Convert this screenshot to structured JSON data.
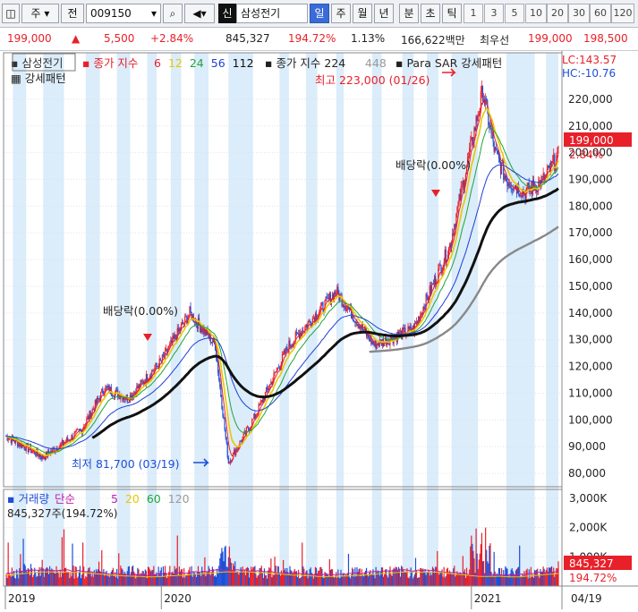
{
  "toolbar": {
    "market_btn": "주",
    "prev_btn": "전",
    "code": "009150",
    "badge": "신",
    "name": "삼성전기",
    "periods": [
      "일",
      "주",
      "월",
      "년",
      "분",
      "초",
      "틱"
    ],
    "active_period": "일",
    "intervals": [
      "1",
      "3",
      "5",
      "10",
      "20",
      "30",
      "60",
      "120"
    ]
  },
  "quote": {
    "price": "199,000",
    "change_arrow": "▲",
    "change": "5,500",
    "change_pct": "+2.84%",
    "volume": "845,327",
    "volume_ratio": "194.72%",
    "turnover": "1.13%",
    "amount": "166,622백만",
    "best_label": "최우선",
    "ask": "199,000",
    "bid": "198,500"
  },
  "price_legend": {
    "stock": "삼성전기",
    "ma_title": "종가 지수",
    "ma_periods": [
      "6",
      "12",
      "24",
      "56",
      "112"
    ],
    "ma2_title": "종가 지수 224",
    "ma2_extra": "448",
    "sar": "Para SAR 강세패턴",
    "line2": "강세패턴"
  },
  "lc_label": "LC:143.57",
  "hc_label": "HC:-10.76",
  "last_price_box": "199,000",
  "last_pct": "2.84%",
  "annotations": {
    "high": "최고 223,000 (01/26)",
    "low": "최저 81,700 (03/19)",
    "dividend1": "배당락(0.00%)",
    "dividend2": "배당락(0.00%)"
  },
  "vol_legend": {
    "title": "거래량",
    "ma_title": "단순",
    "ma_periods": [
      "5",
      "20",
      "60",
      "120"
    ],
    "value_line": "845,327주(194.72%)"
  },
  "vol_box": "845,327",
  "vol_pct": "194.72%",
  "x_labels": [
    "2019",
    "2020",
    "2021",
    "04/19"
  ],
  "colors": {
    "up": "#e8202a",
    "down": "#1d4fd8",
    "ma6": "#e8202a",
    "ma12": "#e6c800",
    "ma24": "#1fa53a",
    "ma56": "#1f3fd6",
    "ma112": "#111111",
    "ma224": "#888888",
    "shade": "#cfe6f8"
  },
  "chart_data": {
    "type": "line",
    "series": [
      {
        "name": "삼성전기",
        "x": [
          "2019-01",
          "2019-03",
          "2019-05",
          "2019-07",
          "2019-09",
          "2019-11",
          "2020-01",
          "2020-02",
          "2020-03",
          "2020-05",
          "2020-07",
          "2020-09",
          "2020-11",
          "2021-01",
          "2021-02",
          "2021-03",
          "2021-04"
        ],
        "values": [
          91000,
          88000,
          107000,
          103000,
          113000,
          125000,
          145000,
          140000,
          81700,
          110000,
          135000,
          138000,
          150000,
          223000,
          195000,
          185000,
          199000
        ]
      }
    ],
    "y_ticks": [
      80000,
      90000,
      100000,
      110000,
      120000,
      130000,
      140000,
      150000,
      160000,
      170000,
      180000,
      190000,
      200000,
      210000,
      220000
    ],
    "ylim": [
      75000,
      228000
    ],
    "volume_ticks": [
      "1,000K",
      "2,000K",
      "3,000K"
    ],
    "high": {
      "value": 223000,
      "date": "01/26"
    },
    "low": {
      "value": 81700,
      "date": "03/19"
    },
    "last": 199000,
    "x_labels": [
      "2019",
      "2020",
      "2021",
      "04/19"
    ]
  }
}
